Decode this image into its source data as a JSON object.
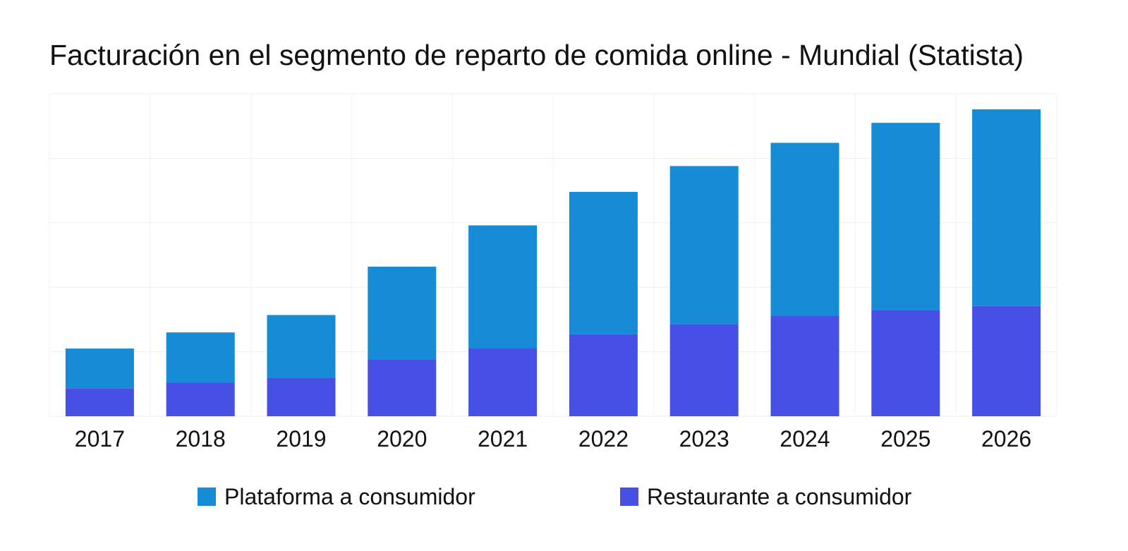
{
  "chart_data": {
    "type": "bar",
    "stacked": true,
    "title": "Facturación en el segmento de reparto de comida online - Mundial (Statista)",
    "xlabel": "",
    "ylabel": "",
    "categories": [
      "2017",
      "2018",
      "2019",
      "2020",
      "2021",
      "2022",
      "2023",
      "2024",
      "2025",
      "2026"
    ],
    "series": [
      {
        "name": "Restaurante a consumidor",
        "color": "#4650e5",
        "values": [
          43.5,
          52,
          60,
          88,
          106,
          127,
          143,
          156,
          165,
          171
        ]
      },
      {
        "name": "Plataforma a consumidor",
        "color": "#168bd6",
        "values": [
          61.5,
          78,
          97,
          144,
          190,
          221,
          245,
          268,
          290,
          305
        ]
      }
    ],
    "ylim": [
      0,
      500
    ],
    "y_tick_labels_shown": false,
    "grid": true,
    "legend_position": "bottom"
  }
}
